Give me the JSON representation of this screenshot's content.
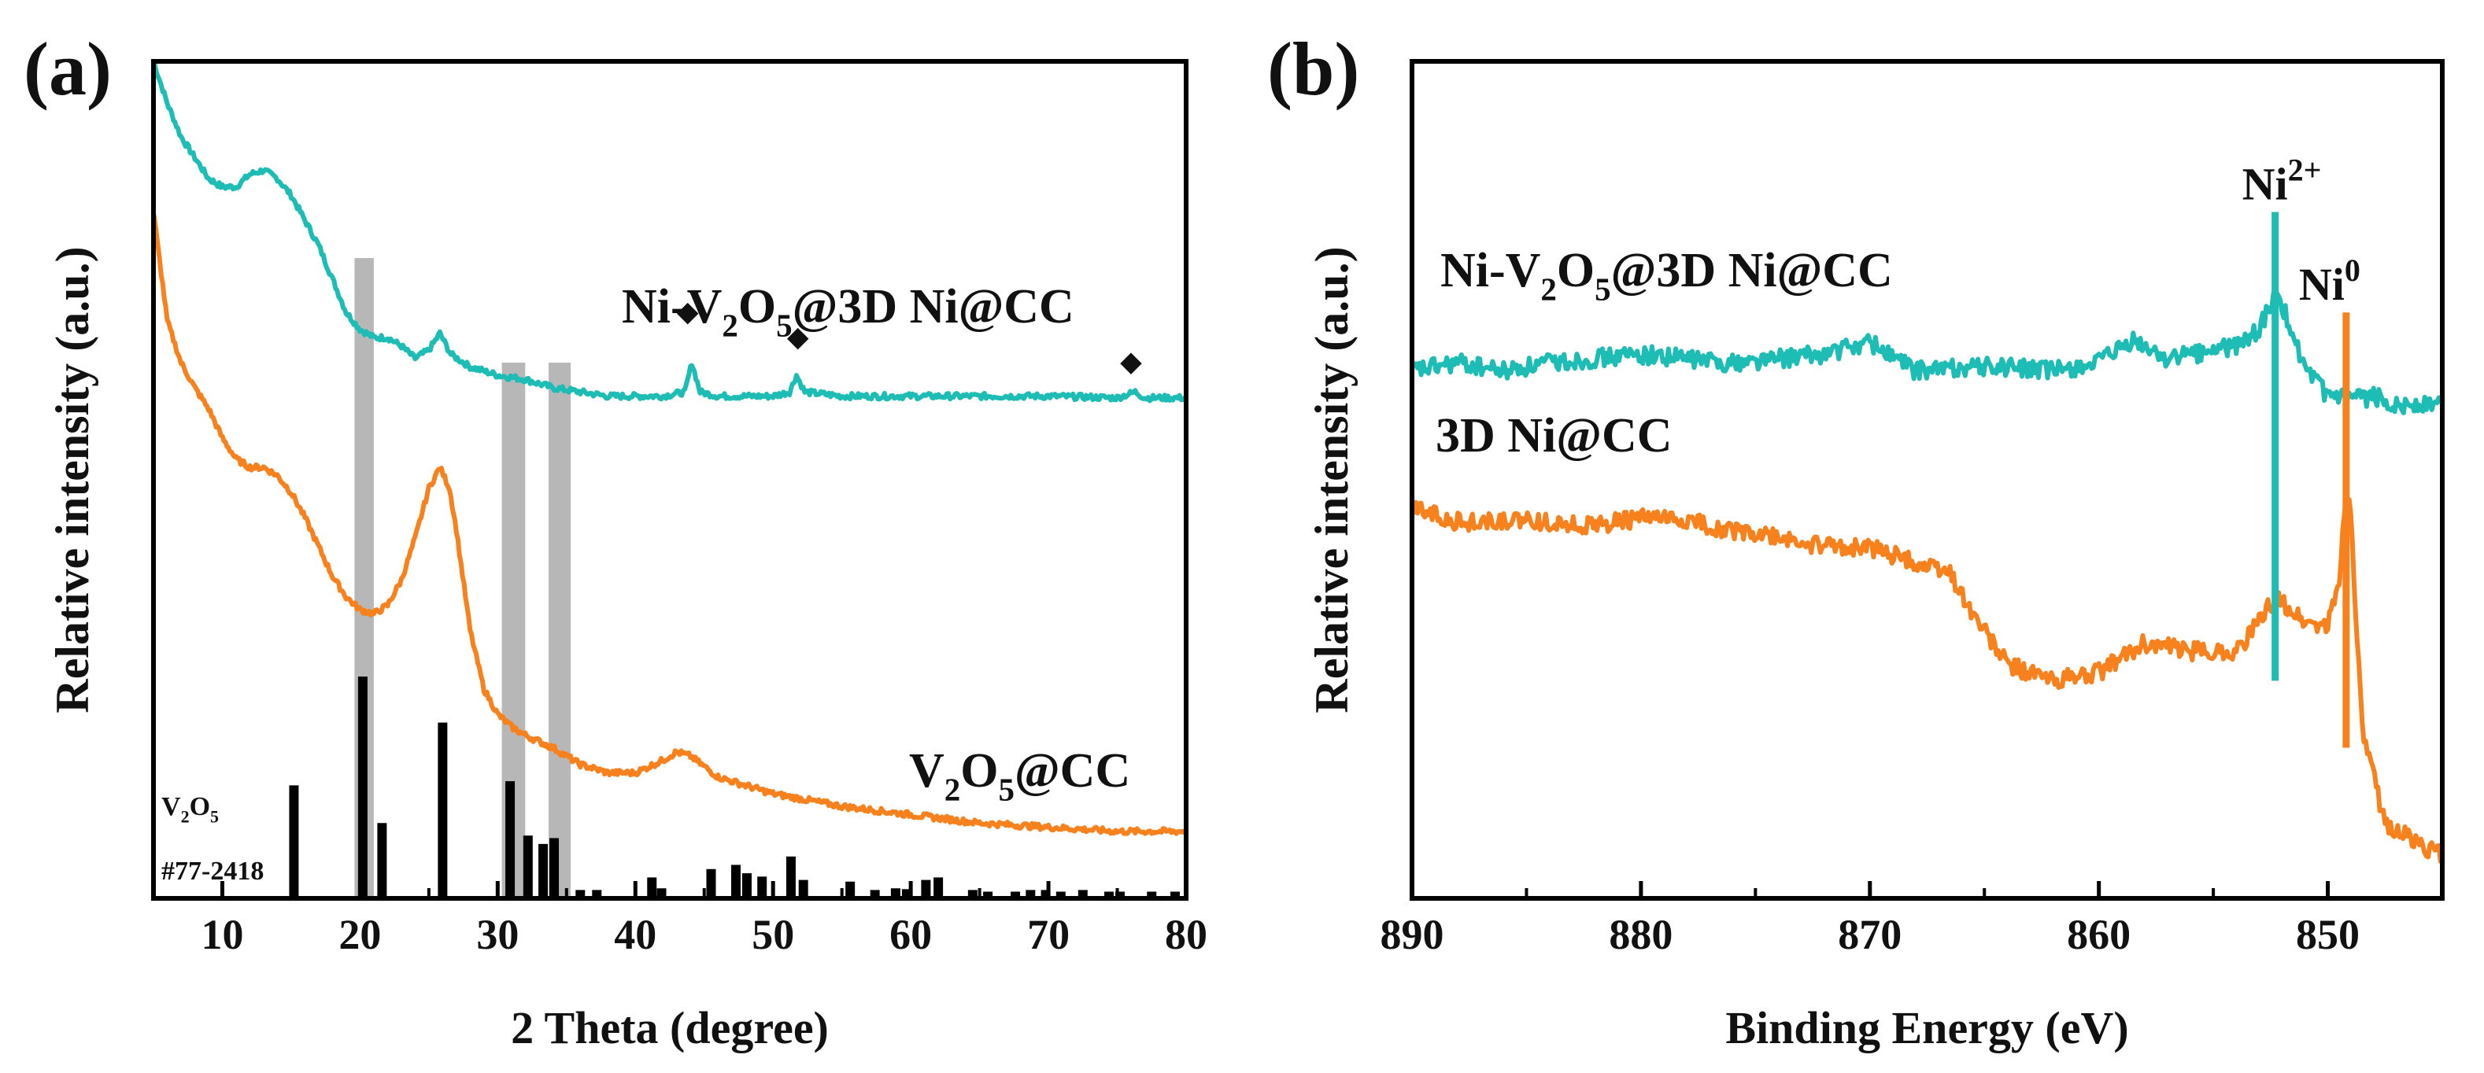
{
  "chart_data": [
    {
      "panel_label": "(a)",
      "type": "line",
      "xlabel": "2 Theta (degree)",
      "ylabel": "Relative intensity (a.u.)",
      "xlim": [
        5,
        80
      ],
      "ylim": [
        0,
        100
      ],
      "xticks": [
        10,
        20,
        30,
        40,
        50,
        60,
        70,
        80
      ],
      "xtick_labels": [
        "10",
        "20",
        "30",
        "40",
        "50",
        "60",
        "70",
        "80"
      ],
      "colors": {
        "Ni-V2O5@3D Ni@CC": "#1dbdb5",
        "V2O5@CC": "#f7811d",
        "reference": "#000000",
        "highlight": "#b7b7b7"
      },
      "series": [
        {
          "name": "Ni-V2O5@3D Ni@CC",
          "label_parts": [
            "Ni-V",
            "2",
            "O",
            "5",
            "@3D Ni@CC"
          ],
          "points": [
            [
              5,
              100
            ],
            [
              6,
              95
            ],
            [
              7,
              91
            ],
            [
              8,
              88.5
            ],
            [
              9,
              86
            ],
            [
              10,
              85
            ],
            [
              11,
              85
            ],
            [
              12,
              86.5
            ],
            [
              13,
              87
            ],
            [
              14,
              86
            ],
            [
              15,
              84
            ],
            [
              16,
              81
            ],
            [
              17,
              78
            ],
            [
              18,
              74
            ],
            [
              19,
              70
            ],
            [
              20,
              68
            ],
            [
              21,
              67
            ],
            [
              22,
              67
            ],
            [
              23,
              66
            ],
            [
              24,
              64.5
            ],
            [
              25,
              65.5
            ],
            [
              25.8,
              67.5
            ],
            [
              26.6,
              65
            ],
            [
              28,
              63.5
            ],
            [
              30,
              62.5
            ],
            [
              32,
              62
            ],
            [
              34,
              61
            ],
            [
              36,
              60.5
            ],
            [
              38,
              60
            ],
            [
              40,
              60
            ],
            [
              42,
              60
            ],
            [
              43.6,
              60.5
            ],
            [
              44.1,
              64
            ],
            [
              44.7,
              60.5
            ],
            [
              46,
              60
            ],
            [
              50,
              60
            ],
            [
              51.2,
              60.5
            ],
            [
              51.7,
              62.5
            ],
            [
              52.3,
              60.5
            ],
            [
              55,
              60
            ],
            [
              60,
              60
            ],
            [
              65,
              60
            ],
            [
              70,
              60
            ],
            [
              75,
              59.8
            ],
            [
              76.3,
              60.5
            ],
            [
              77,
              59.8
            ],
            [
              80,
              59.8
            ]
          ]
        },
        {
          "name": "V2O5@CC",
          "label_parts": [
            "V",
            "2",
            "O",
            "5",
            "@CC"
          ],
          "points": [
            [
              5,
              82
            ],
            [
              6,
              69
            ],
            [
              7,
              64
            ],
            [
              8,
              61
            ],
            [
              9,
              58.5
            ],
            [
              10,
              55
            ],
            [
              11,
              52.5
            ],
            [
              12,
              51.5
            ],
            [
              13,
              51.5
            ],
            [
              14,
              50.5
            ],
            [
              15,
              48.5
            ],
            [
              16,
              45.5
            ],
            [
              17,
              42
            ],
            [
              18,
              38.5
            ],
            [
              19,
              36
            ],
            [
              20,
              34.5
            ],
            [
              21,
              34
            ],
            [
              22,
              35
            ],
            [
              23,
              38
            ],
            [
              24,
              43
            ],
            [
              25,
              49
            ],
            [
              25.8,
              51.5
            ],
            [
              26.5,
              49
            ],
            [
              27,
              44
            ],
            [
              28,
              32
            ],
            [
              29,
              25
            ],
            [
              30,
              22
            ],
            [
              31,
              20.5
            ],
            [
              32,
              19.5
            ],
            [
              34,
              18
            ],
            [
              36,
              16
            ],
            [
              38,
              15
            ],
            [
              40,
              15
            ],
            [
              42,
              16.5
            ],
            [
              43,
              17.5
            ],
            [
              44,
              17
            ],
            [
              46,
              14.5
            ],
            [
              48,
              13.5
            ],
            [
              50,
              12.5
            ],
            [
              55,
              11
            ],
            [
              60,
              10
            ],
            [
              65,
              9
            ],
            [
              70,
              8.5
            ],
            [
              75,
              8
            ],
            [
              80,
              8
            ]
          ]
        }
      ],
      "reference_pattern": {
        "label_parts": [
          "V",
          "2",
          "O",
          "5"
        ],
        "card": "#77-2418",
        "x": [
          15.2,
          20.2,
          21.6,
          26.0,
          30.9,
          32.2,
          33.3,
          34.1,
          36.0,
          37.2,
          41.2,
          41.9,
          45.5,
          47.3,
          48.1,
          49.2,
          51.3,
          52.2,
          55.6,
          57.4,
          58.9,
          59.7,
          61.1,
          62.0,
          64.5,
          65.6,
          67.6,
          68.7,
          69.8,
          70.9,
          72.5,
          74.4,
          75.2,
          77.5,
          79.2
        ],
        "height": [
          13.5,
          26.5,
          9,
          21,
          14,
          7.5,
          6.5,
          7.2,
          1,
          1,
          2.5,
          1.2,
          3.5,
          4,
          3,
          2.6,
          5,
          2.2,
          2,
          1,
          1.2,
          1.1,
          2.2,
          2.5,
          1,
          0.8,
          0.8,
          1,
          1,
          0.8,
          1,
          0.8,
          0.8,
          0.8,
          0.8
        ]
      },
      "highlight_bands": [
        {
          "x": [
            19.6,
            21.0
          ],
          "top": 76.5
        },
        {
          "x": [
            30.3,
            32.0
          ],
          "top": 64
        },
        {
          "x": [
            33.7,
            35.3
          ],
          "top": 64
        }
      ],
      "markers": [
        {
          "symbol": "◆",
          "x": 43.8,
          "y": 69
        },
        {
          "symbol": "◆",
          "x": 51.8,
          "y": 66
        },
        {
          "symbol": "◆",
          "x": 76.0,
          "y": 63
        }
      ]
    },
    {
      "panel_label": "(b)",
      "type": "line",
      "xlabel": "Binding Energy (eV)",
      "ylabel": "Relative intensity (a.u.)",
      "xlim": [
        890,
        845
      ],
      "ylim": [
        0,
        100
      ],
      "xticks": [
        890,
        880,
        870,
        860,
        850
      ],
      "xtick_labels": [
        "890",
        "880",
        "870",
        "860",
        "850"
      ],
      "colors": {
        "Ni-V2O5@3D Ni@CC": "#1dbdb5",
        "3D Ni@CC": "#f7811d"
      },
      "series": [
        {
          "name": "Ni-V2O5@3D Ni@CC",
          "label_parts": [
            "Ni-V",
            "2",
            "O",
            "5",
            "@3D Ni@CC"
          ],
          "points": [
            [
              890,
              63
            ],
            [
              888,
              64
            ],
            [
              886,
              63
            ],
            [
              884,
              64
            ],
            [
              882,
              64.5
            ],
            [
              880,
              65
            ],
            [
              878,
              64.5
            ],
            [
              876,
              64
            ],
            [
              874,
              64.5
            ],
            [
              872,
              65
            ],
            [
              870,
              66.5
            ],
            [
              868,
              63
            ],
            [
              866,
              63.5
            ],
            [
              864,
              63.5
            ],
            [
              862,
              63
            ],
            [
              860,
              64
            ],
            [
              858.5,
              66.5
            ],
            [
              857,
              64.5
            ],
            [
              856,
              65
            ],
            [
              855,
              65.5
            ],
            [
              854,
              66
            ],
            [
              853,
              68
            ],
            [
              852.3,
              72
            ],
            [
              851.7,
              69
            ],
            [
              851,
              63
            ],
            [
              850,
              60
            ],
            [
              849,
              59.5
            ],
            [
              848,
              60
            ],
            [
              847,
              59
            ],
            [
              846,
              59
            ],
            [
              845,
              59
            ]
          ]
        },
        {
          "name": "3D Ni@CC",
          "label_parts": [
            "3D Ni@CC"
          ],
          "points": [
            [
              890,
              47
            ],
            [
              888,
              45
            ],
            [
              886,
              45
            ],
            [
              884,
              45
            ],
            [
              882,
              44.5
            ],
            [
              880,
              45.5
            ],
            [
              878,
              45
            ],
            [
              876,
              44
            ],
            [
              874,
              43
            ],
            [
              872,
              42
            ],
            [
              870,
              42
            ],
            [
              868,
              40
            ],
            [
              866.5,
              39
            ],
            [
              865.5,
              34
            ],
            [
              864,
              28
            ],
            [
              862,
              26
            ],
            [
              860,
              27
            ],
            [
              858,
              30.5
            ],
            [
              856,
              29.5
            ],
            [
              854,
              29.5
            ],
            [
              853,
              33
            ],
            [
              852.3,
              36
            ],
            [
              851,
              33
            ],
            [
              850,
              32.5
            ],
            [
              849.5,
              38
            ],
            [
              849.2,
              49
            ],
            [
              849,
              46
            ],
            [
              848.5,
              20
            ],
            [
              847.5,
              9
            ],
            [
              846,
              6.5
            ],
            [
              845,
              5
            ]
          ]
        }
      ],
      "peak_lines": [
        {
          "label": "Ni",
          "superscript": "2+",
          "x": 852.3,
          "y_range": [
            26,
            82
          ],
          "color": "#1dbdb5"
        },
        {
          "label": "Ni",
          "superscript": "0",
          "x": 849.2,
          "y_range": [
            18,
            70
          ],
          "color": "#f7811d"
        }
      ]
    }
  ]
}
